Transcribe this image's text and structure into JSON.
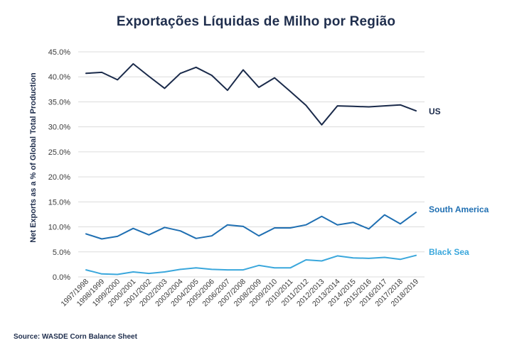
{
  "chart_data": {
    "type": "line",
    "title": "Exportações Líquidas de Milho por Região",
    "ylabel": "Net Exports as a % of Global Total Production",
    "xlabel": "",
    "ylim": [
      0,
      45
    ],
    "y_ticks": [
      0,
      5,
      10,
      15,
      20,
      25,
      30,
      35,
      40,
      45
    ],
    "y_tick_labels": [
      "0.0%",
      "5.0%",
      "10.0%",
      "15.0%",
      "20.0%",
      "25.0%",
      "30.0%",
      "35.0%",
      "40.0%",
      "45.0%"
    ],
    "grid": true,
    "legend": "direct labels at line ends (right)",
    "categories": [
      "1997/1998",
      "1998/1999",
      "1999/2000",
      "2000/2001",
      "2001/2002",
      "2002/2003",
      "2003/2004",
      "2004/2005",
      "2005/2006",
      "2006/2007",
      "2007/2008",
      "2008/2009",
      "2009/2010",
      "2010/2011",
      "2011/2012",
      "2012/2013",
      "2013/2014",
      "2014/2015",
      "2015/2016",
      "2016/2017",
      "2017/2018",
      "2018/2019"
    ],
    "series": [
      {
        "name": "US",
        "color": "#1a2a4a",
        "values": [
          40.7,
          40.9,
          39.4,
          42.6,
          40.1,
          37.7,
          40.7,
          41.9,
          40.3,
          37.3,
          41.4,
          37.9,
          39.8,
          37.1,
          34.3,
          30.4,
          34.2,
          34.1,
          34.0,
          34.2,
          34.4,
          33.2
        ]
      },
      {
        "name": "South America",
        "color": "#1f6fb2",
        "values": [
          8.6,
          7.6,
          8.1,
          9.7,
          8.4,
          9.9,
          9.2,
          7.7,
          8.2,
          10.4,
          10.1,
          8.2,
          9.8,
          9.8,
          10.4,
          12.1,
          10.4,
          10.9,
          9.6,
          12.4,
          10.6,
          12.9
        ]
      },
      {
        "name": "Black Sea",
        "color": "#3aa7dc",
        "values": [
          1.4,
          0.6,
          0.5,
          1.0,
          0.7,
          1.0,
          1.5,
          1.8,
          1.5,
          1.4,
          1.4,
          2.3,
          1.8,
          1.8,
          3.4,
          3.2,
          4.2,
          3.8,
          3.7,
          3.9,
          3.5,
          4.3
        ]
      }
    ]
  },
  "source": "Source: WASDE Corn Balance Sheet"
}
